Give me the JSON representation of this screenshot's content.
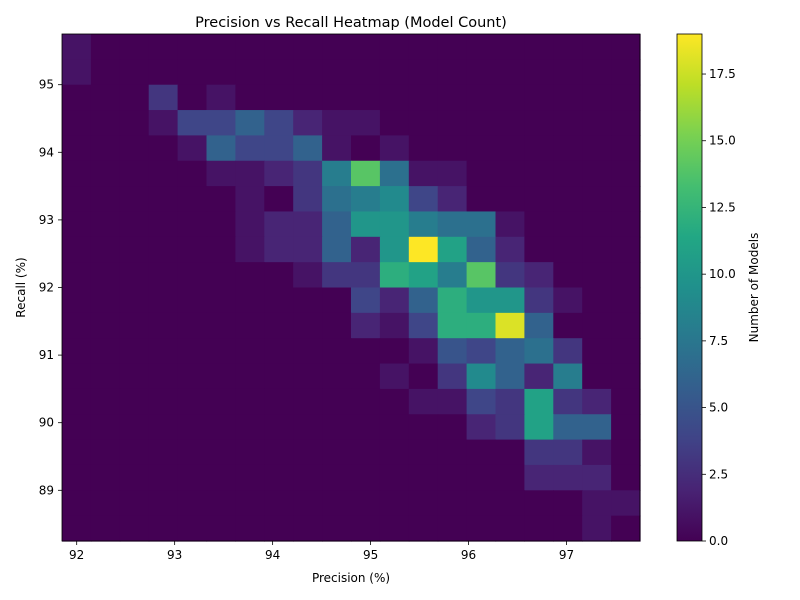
{
  "chart_data": {
    "type": "heatmap",
    "title": "Precision vs Recall Heatmap (Model Count)",
    "xlabel": "Precision (%)",
    "ylabel": "Recall (%)",
    "xlim": [
      91.85,
      97.75
    ],
    "ylim": [
      88.25,
      95.75
    ],
    "x_ticks": [
      92,
      93,
      94,
      95,
      96,
      97
    ],
    "y_ticks": [
      89,
      90,
      91,
      92,
      93,
      94,
      95
    ],
    "x_bins": 20,
    "y_bins": 20,
    "colorbar": {
      "label": "Number of Models",
      "min": 0.0,
      "max": 19.0,
      "ticks": [
        "0.0",
        "2.5",
        "5.0",
        "7.5",
        "10.0",
        "12.5",
        "15.0",
        "17.5"
      ],
      "colormap": "viridis"
    },
    "counts_rows_top_to_bottom": [
      [
        1,
        0,
        0,
        0,
        0,
        0,
        0,
        0,
        0,
        0,
        0,
        0,
        0,
        0,
        0,
        0,
        0,
        0,
        0,
        0
      ],
      [
        1,
        0,
        0,
        0,
        0,
        0,
        0,
        0,
        0,
        0,
        0,
        0,
        0,
        0,
        0,
        0,
        0,
        0,
        0,
        0
      ],
      [
        0,
        0,
        0,
        3,
        0,
        1,
        0,
        0,
        0,
        0,
        0,
        0,
        0,
        0,
        0,
        0,
        0,
        0,
        0,
        0
      ],
      [
        0,
        0,
        0,
        1,
        4,
        4,
        6,
        4,
        2,
        1,
        1,
        0,
        0,
        0,
        0,
        0,
        0,
        0,
        0,
        0
      ],
      [
        0,
        0,
        0,
        0,
        1,
        6,
        4,
        4,
        6,
        1,
        0,
        1,
        0,
        0,
        0,
        0,
        0,
        0,
        0,
        0
      ],
      [
        0,
        0,
        0,
        0,
        0,
        1,
        1,
        2,
        3,
        8,
        14,
        7,
        1,
        1,
        0,
        0,
        0,
        0,
        0,
        0
      ],
      [
        0,
        0,
        0,
        0,
        0,
        0,
        1,
        0,
        3,
        7,
        8,
        9,
        4,
        2,
        0,
        0,
        0,
        0,
        0,
        0
      ],
      [
        0,
        0,
        0,
        0,
        0,
        0,
        1,
        2,
        2,
        6,
        10,
        10,
        8,
        7,
        7,
        1,
        0,
        0,
        0,
        0
      ],
      [
        0,
        0,
        0,
        0,
        0,
        0,
        1,
        2,
        2,
        6,
        2,
        10,
        19,
        11,
        6,
        2,
        0,
        0,
        0,
        0
      ],
      [
        0,
        0,
        0,
        0,
        0,
        0,
        0,
        0,
        1,
        3,
        3,
        12,
        11,
        8,
        14,
        3,
        2,
        0,
        0,
        0
      ],
      [
        0,
        0,
        0,
        0,
        0,
        0,
        0,
        0,
        0,
        0,
        4,
        2,
        6,
        12,
        10,
        10,
        3,
        1,
        0,
        0
      ],
      [
        0,
        0,
        0,
        0,
        0,
        0,
        0,
        0,
        0,
        0,
        2,
        1,
        4,
        12,
        12,
        18,
        6,
        0,
        0,
        0
      ],
      [
        0,
        0,
        0,
        0,
        0,
        0,
        0,
        0,
        0,
        0,
        0,
        0,
        1,
        5,
        4,
        6,
        7,
        3,
        0,
        0
      ],
      [
        0,
        0,
        0,
        0,
        0,
        0,
        0,
        0,
        0,
        0,
        0,
        1,
        0,
        3,
        9,
        6,
        2,
        8,
        0,
        0
      ],
      [
        0,
        0,
        0,
        0,
        0,
        0,
        0,
        0,
        0,
        0,
        0,
        0,
        1,
        1,
        4,
        3,
        11,
        3,
        2,
        0
      ],
      [
        0,
        0,
        0,
        0,
        0,
        0,
        0,
        0,
        0,
        0,
        0,
        0,
        0,
        0,
        2,
        3,
        11,
        6,
        6,
        0
      ],
      [
        0,
        0,
        0,
        0,
        0,
        0,
        0,
        0,
        0,
        0,
        0,
        0,
        0,
        0,
        0,
        0,
        3,
        3,
        1,
        0
      ],
      [
        0,
        0,
        0,
        0,
        0,
        0,
        0,
        0,
        0,
        0,
        0,
        0,
        0,
        0,
        0,
        0,
        2,
        2,
        2,
        0
      ],
      [
        0,
        0,
        0,
        0,
        0,
        0,
        0,
        0,
        0,
        0,
        0,
        0,
        0,
        0,
        0,
        0,
        0,
        0,
        1,
        1
      ],
      [
        0,
        0,
        0,
        0,
        0,
        0,
        0,
        0,
        0,
        0,
        0,
        0,
        0,
        0,
        0,
        0,
        0,
        0,
        1,
        0
      ]
    ]
  }
}
